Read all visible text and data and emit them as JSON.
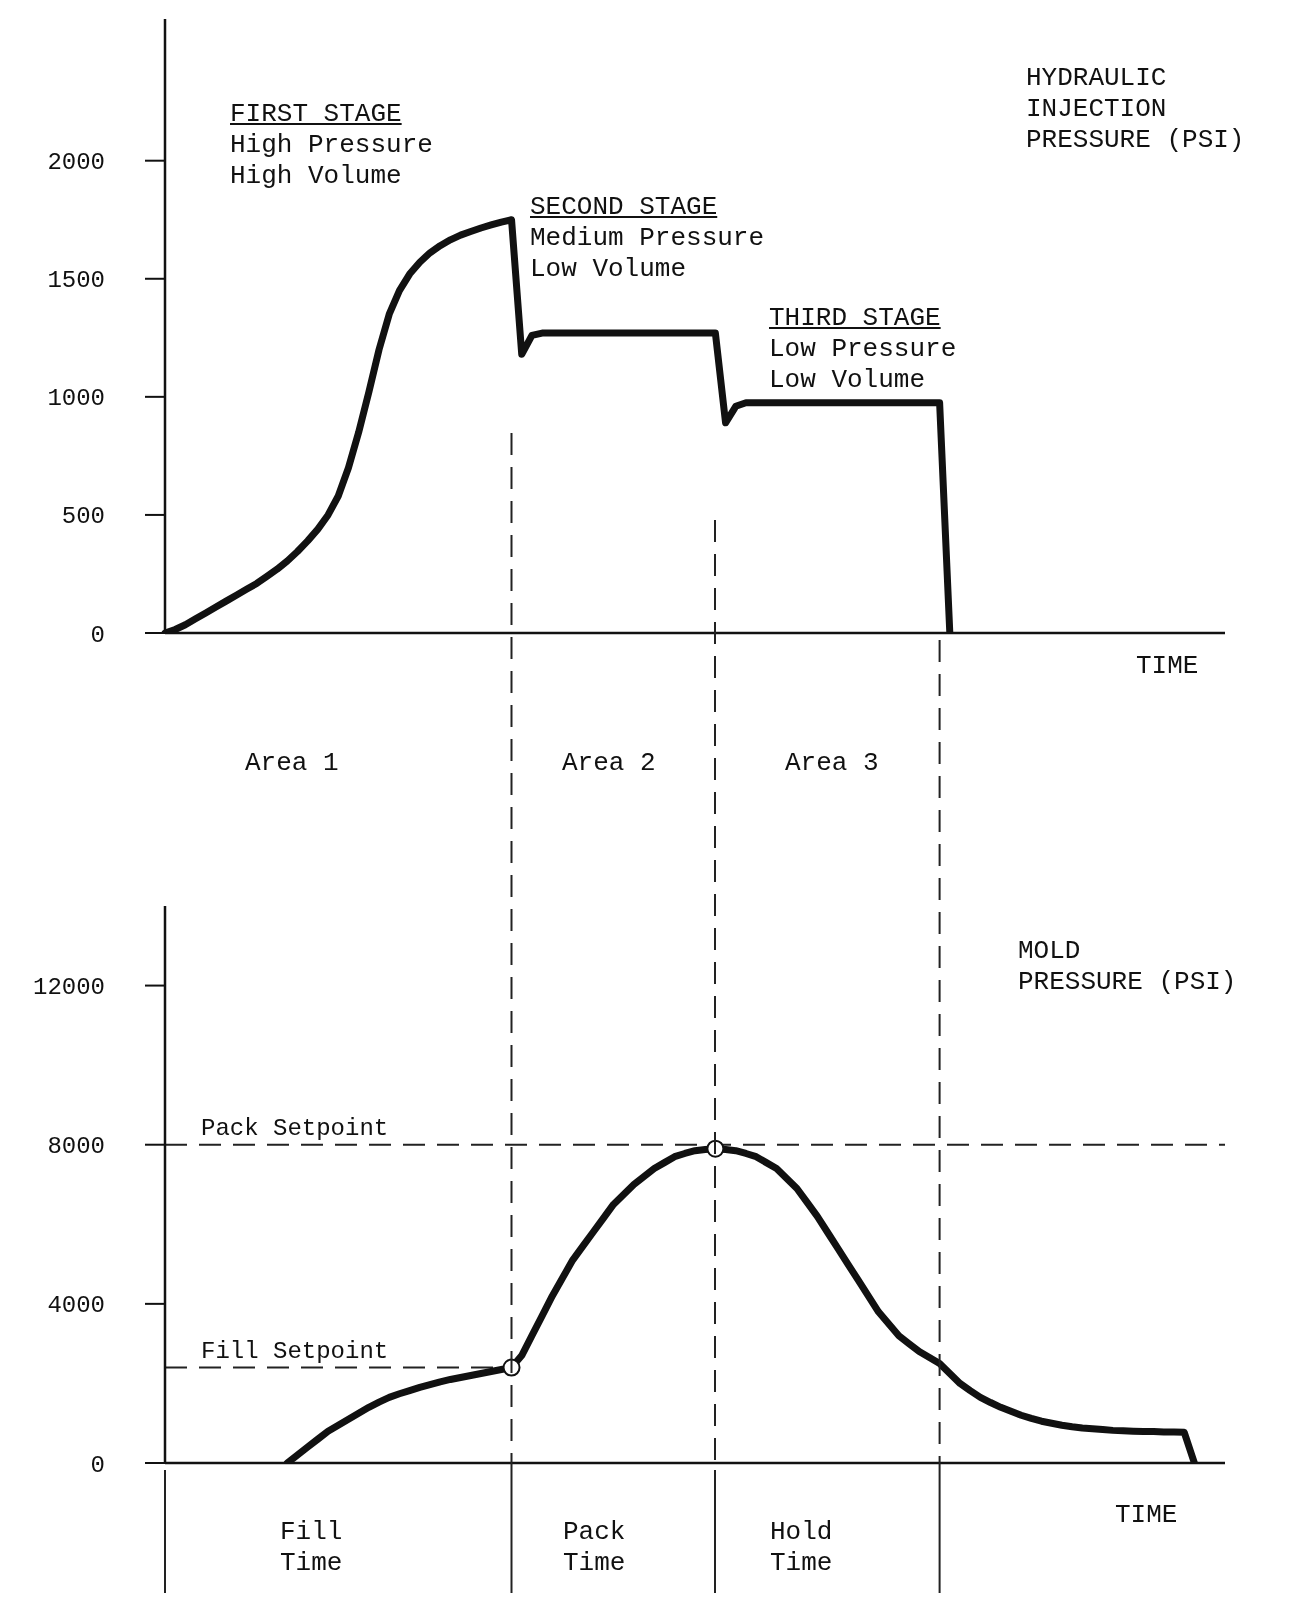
{
  "chart_data": [
    {
      "type": "line",
      "ylabel": "HYDRAULIC\nINJECTION\nPRESSURE (PSI)",
      "xlabel": "TIME",
      "tick_labels": "y",
      "ylim": [
        0,
        2600
      ],
      "yticks": [
        0,
        500,
        1000,
        1500,
        2000
      ],
      "categories": [
        null,
        null,
        null,
        null,
        null,
        null,
        null,
        null,
        null,
        null,
        null,
        null,
        null,
        null,
        null,
        null,
        null,
        null,
        null,
        null,
        null,
        null,
        null,
        null,
        null,
        null,
        null,
        null,
        null,
        null,
        null,
        null,
        null,
        null,
        null,
        null,
        null,
        null,
        null,
        null,
        null,
        null,
        null,
        null,
        null,
        null,
        null,
        null,
        null,
        null,
        null,
        null,
        null,
        null,
        null,
        null,
        null,
        null,
        null,
        null,
        null,
        null,
        null,
        null,
        null,
        null,
        null,
        null,
        null,
        null,
        null,
        null,
        null,
        null,
        null,
        null,
        null,
        null,
        null,
        null,
        null,
        null,
        null,
        null,
        null,
        null,
        null,
        null,
        null,
        null,
        null,
        null,
        null,
        null,
        null,
        null,
        null,
        null,
        null,
        null,
        null,
        null,
        null,
        null,
        null
      ],
      "series": [
        {
          "color": "#111111",
          "marker": "none",
          "line_style": "solid",
          "values": [
            0,
            15,
            35,
            60,
            85,
            110,
            135,
            160,
            185,
            210,
            240,
            270,
            305,
            345,
            390,
            440,
            500,
            580,
            700,
            850,
            1020,
            1200,
            1350,
            1450,
            1520,
            1570,
            1610,
            1640,
            1665,
            1685,
            1700,
            1715,
            1728,
            1740,
            1750,
            1180,
            1260,
            1270,
            1270,
            1270,
            1270,
            1270,
            1270,
            1270,
            1270,
            1270,
            1270,
            1270,
            1270,
            1270,
            1270,
            1270,
            1270,
            1270,
            1270,
            890,
            960,
            975,
            975,
            975,
            975,
            975,
            975,
            975,
            975,
            975,
            975,
            975,
            975,
            975,
            975,
            975,
            975,
            975,
            975,
            975,
            975,
            0,
            null,
            null,
            null,
            null,
            null,
            null,
            null,
            null,
            null,
            null,
            null,
            null,
            null,
            null,
            null,
            null,
            null,
            null,
            null,
            null,
            null,
            null,
            null,
            null,
            null,
            null,
            null
          ]
        }
      ],
      "annotations": [
        "FIRST STAGE\nHigh Pressure\nHigh Volume",
        "SECOND STAGE\nMedium Pressure\nLow Volume",
        "THIRD STAGE\nLow Pressure\nLow Volume",
        "Area 1",
        "Area 2",
        "Area 3"
      ]
    },
    {
      "type": "line",
      "ylabel": "MOLD\nPRESSURE (PSI)",
      "xlabel": "TIME",
      "tick_labels": "y",
      "ylim": [
        0,
        14000
      ],
      "yticks": [
        0,
        4000,
        8000,
        12000
      ],
      "categories": [
        null,
        null,
        null,
        null,
        null,
        null,
        null,
        null,
        null,
        null,
        null,
        null,
        null,
        null,
        null,
        null,
        null,
        null,
        null,
        null,
        null,
        null,
        null,
        null,
        null,
        null,
        null,
        null,
        null,
        null,
        null,
        null,
        null,
        null,
        null,
        null,
        null,
        null,
        null,
        null,
        null,
        null,
        null,
        null,
        null,
        null,
        null,
        null,
        null,
        null,
        null,
        null,
        null,
        null,
        null,
        null,
        null,
        null,
        null,
        null,
        null,
        null,
        null,
        null,
        null,
        null,
        null,
        null,
        null,
        null,
        null,
        null,
        null,
        null,
        null,
        null,
        null,
        null,
        null,
        null,
        null,
        null,
        null,
        null,
        null,
        null,
        null,
        null,
        null,
        null,
        null,
        null,
        null,
        null,
        null,
        null,
        null,
        null,
        null,
        null,
        null,
        null,
        null,
        null,
        null
      ],
      "series": [
        {
          "color": "#111111",
          "marker": "none",
          "line_style": "solid",
          "values": [
            null,
            null,
            null,
            null,
            null,
            null,
            null,
            null,
            null,
            null,
            null,
            null,
            0,
            200,
            400,
            600,
            800,
            950,
            1100,
            1250,
            1400,
            1530,
            1650,
            1740,
            1820,
            1900,
            1970,
            2040,
            2100,
            2150,
            2200,
            2250,
            2300,
            2350,
            2400,
            2700,
            3200,
            3700,
            4200,
            4650,
            5100,
            5450,
            5800,
            6150,
            6500,
            6750,
            7000,
            7200,
            7400,
            7550,
            7700,
            7780,
            7850,
            7880,
            7900,
            7880,
            7850,
            7780,
            7700,
            7550,
            7400,
            7150,
            6900,
            6550,
            6200,
            5800,
            5400,
            5000,
            4600,
            4200,
            3800,
            3500,
            3200,
            3000,
            2800,
            2650,
            2500,
            2250,
            2000,
            1820,
            1650,
            1520,
            1400,
            1300,
            1200,
            1120,
            1050,
            1000,
            950,
            910,
            880,
            860,
            840,
            820,
            810,
            800,
            790,
            790,
            780,
            780,
            770,
            0,
            null,
            null,
            null
          ]
        },
        {
          "type": "scatter",
          "color": "#ffffff",
          "marker": "circle",
          "values": [
            null,
            null,
            null,
            null,
            null,
            null,
            null,
            null,
            null,
            null,
            null,
            null,
            null,
            null,
            null,
            null,
            null,
            null,
            null,
            null,
            null,
            null,
            null,
            null,
            null,
            null,
            null,
            null,
            null,
            null,
            null,
            null,
            null,
            null,
            2400,
            null,
            null,
            null,
            null,
            null,
            null,
            null,
            null,
            null,
            null,
            null,
            null,
            null,
            null,
            null,
            null,
            null,
            null,
            null,
            7900,
            null,
            null,
            null,
            null,
            null,
            null,
            null,
            null,
            null,
            null,
            null,
            null,
            null,
            null,
            null,
            null,
            null,
            null,
            null,
            null,
            null,
            null,
            null,
            null,
            null,
            null,
            null,
            null,
            null,
            null,
            null,
            null,
            null,
            null,
            null,
            null,
            null,
            null,
            null,
            null,
            null,
            null,
            null,
            null,
            null,
            null,
            null,
            null,
            null,
            null
          ]
        }
      ],
      "ref_lines": [
        {
          "axis": "y",
          "value": 8000,
          "label": "Pack Setpoint",
          "line_style": "dashed",
          "color": "#222222"
        },
        {
          "axis": "y",
          "value": 2400,
          "label": "Fill Setpoint",
          "line_style": "dashed",
          "color": "#222222"
        }
      ],
      "annotations": [
        "Fill\nTime",
        "Pack\nTime",
        "Hold\nTime"
      ]
    }
  ]
}
